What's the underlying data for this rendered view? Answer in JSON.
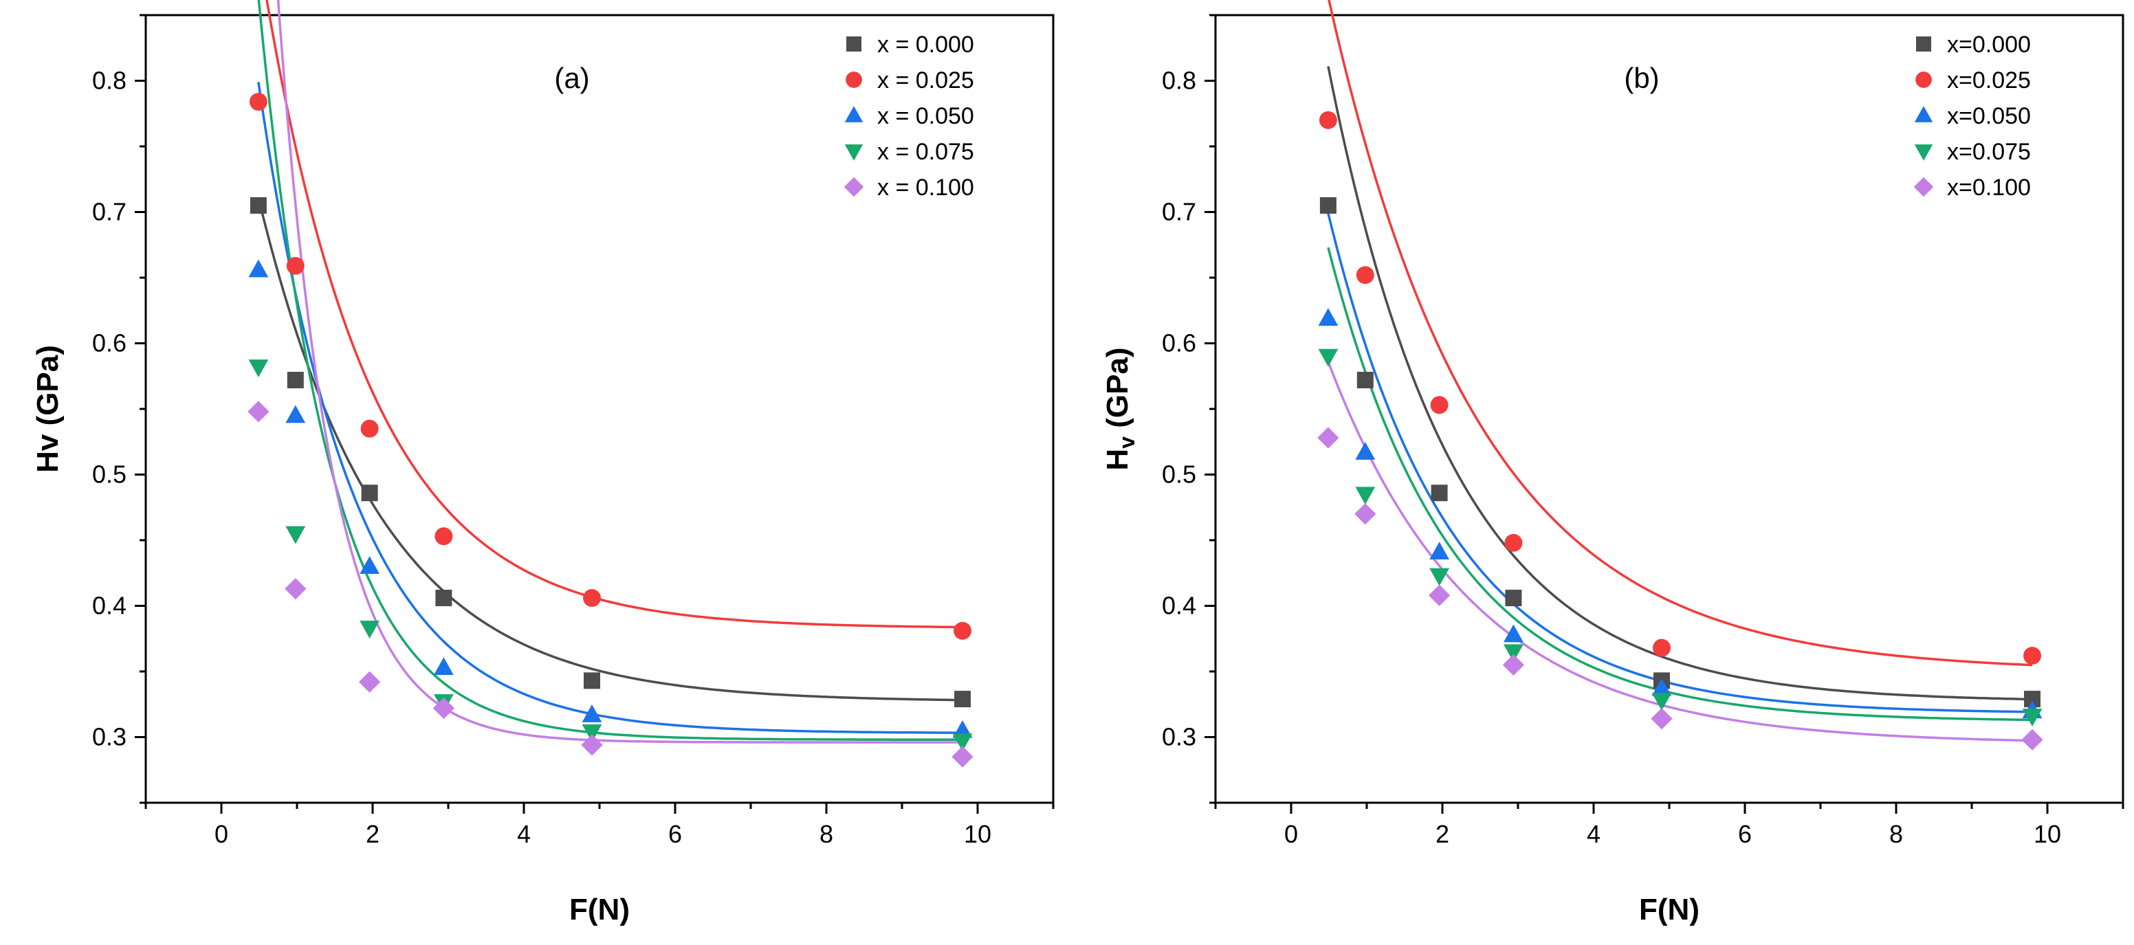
{
  "chart_data": [
    {
      "type": "scatter",
      "panel_label": "(a)",
      "xlabel": "F(N)",
      "ylabel": "Hv (GPa)",
      "ylabel_main": "Hv",
      "ylabel_sub": "",
      "ylabel_unit": " (GPa)",
      "xlim": [
        -1,
        11
      ],
      "ylim": [
        0.25,
        0.85
      ],
      "xticks": [
        0,
        2,
        4,
        6,
        8,
        10
      ],
      "xtick_labels": [
        "0",
        "2",
        "4",
        "6",
        "8",
        "10"
      ],
      "yticks": [
        0.3,
        0.4,
        0.5,
        0.6,
        0.7,
        0.8
      ],
      "ytick_labels": [
        "0.3",
        "0.4",
        "0.5",
        "0.6",
        "0.7",
        "0.8"
      ],
      "x": [
        0.49,
        0.98,
        1.96,
        2.94,
        4.9,
        9.8
      ],
      "legend_position": "top-right",
      "series": [
        {
          "name": "x = 0.000",
          "color": "#4d4d4d",
          "marker": "square",
          "values": [
            0.705,
            0.572,
            0.486,
            0.406,
            0.343,
            0.329
          ],
          "fit": {
            "a": 0.384,
            "k": 0.62,
            "c": 0.327
          }
        },
        {
          "name": "x = 0.025",
          "color": "#f23b3b",
          "marker": "circle",
          "values": [
            0.784,
            0.659,
            0.535,
            0.453,
            0.406,
            0.381
          ],
          "fit": {
            "a": 0.517,
            "k": 0.7,
            "c": 0.383
          }
        },
        {
          "name": "x = 0.050",
          "color": "#1a73e8",
          "marker": "triangle-up",
          "values": [
            0.656,
            0.545,
            0.43,
            0.353,
            0.317,
            0.305
          ],
          "fit": {
            "a": 0.496,
            "k": 0.8,
            "c": 0.303
          }
        },
        {
          "name": "x = 0.075",
          "color": "#17a86b",
          "marker": "triangle-down",
          "values": [
            0.582,
            0.455,
            0.383,
            0.327,
            0.304,
            0.297
          ],
          "fit": {
            "a": 0.566,
            "k": 1.05,
            "c": 0.298
          }
        },
        {
          "name": "x = 0.100",
          "color": "#c47ee6",
          "marker": "diamond",
          "values": [
            0.548,
            0.413,
            0.342,
            0.322,
            0.294,
            0.285
          ],
          "fit": {
            "a": 0.814,
            "k": 1.4,
            "c": 0.296
          }
        }
      ]
    },
    {
      "type": "scatter",
      "panel_label": "(b)",
      "xlabel": "F(N)",
      "ylabel": "Hv (GPa)",
      "ylabel_main": "H",
      "ylabel_sub": "v",
      "ylabel_unit": " (GPa)",
      "xlim": [
        -1,
        11
      ],
      "ylim": [
        0.25,
        0.85
      ],
      "xticks": [
        0,
        2,
        4,
        6,
        8,
        10
      ],
      "xtick_labels": [
        "0",
        "2",
        "4",
        "6",
        "8",
        "10"
      ],
      "yticks": [
        0.3,
        0.4,
        0.5,
        0.6,
        0.7,
        0.8
      ],
      "ytick_labels": [
        "0.3",
        "0.4",
        "0.5",
        "0.6",
        "0.7",
        "0.8"
      ],
      "x": [
        0.49,
        0.98,
        1.96,
        2.94,
        4.9,
        9.8
      ],
      "legend_position": "top-right",
      "series": [
        {
          "name": "x=0.000",
          "color": "#4d4d4d",
          "marker": "square",
          "values": [
            0.705,
            0.572,
            0.486,
            0.406,
            0.343,
            0.329
          ],
          "fit": {
            "a": 0.484,
            "k": 0.6,
            "c": 0.327
          }
        },
        {
          "name": "x=0.025",
          "color": "#f23b3b",
          "marker": "circle",
          "values": [
            0.77,
            0.652,
            0.553,
            0.448,
            0.368,
            0.362
          ],
          "fit": {
            "a": 0.514,
            "k": 0.5,
            "c": 0.35
          }
        },
        {
          "name": "x=0.050",
          "color": "#1a73e8",
          "marker": "triangle-up",
          "values": [
            0.619,
            0.517,
            0.441,
            0.378,
            0.337,
            0.32
          ],
          "fit": {
            "a": 0.381,
            "k": 0.62,
            "c": 0.318
          }
        },
        {
          "name": "x=0.075",
          "color": "#17a86b",
          "marker": "triangle-down",
          "values": [
            0.59,
            0.485,
            0.423,
            0.365,
            0.328,
            0.316
          ],
          "fit": {
            "a": 0.361,
            "k": 0.62,
            "c": 0.312
          }
        },
        {
          "name": "x=0.100",
          "color": "#c47ee6",
          "marker": "diamond",
          "values": [
            0.528,
            0.47,
            0.408,
            0.355,
            0.314,
            0.298
          ],
          "fit": {
            "a": 0.291,
            "k": 0.52,
            "c": 0.295
          }
        }
      ]
    }
  ]
}
